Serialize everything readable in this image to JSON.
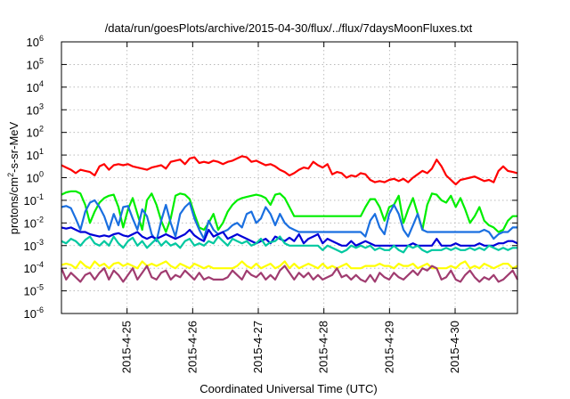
{
  "chart_data": {
    "type": "line",
    "title": "/data/run/goesPlots/archive/2015-04-30/flux/../flux/7daysMoonFluxes.txt",
    "xlabel": "Coordinated Universal Time (UTC)",
    "ylabel": {
      "main": "protons/cm",
      "sup": "2",
      "rest": "-s-sr-MeV"
    },
    "yscale": "log",
    "ylim_exp": [
      -6,
      6
    ],
    "ytick_exps": [
      -6,
      -5,
      -4,
      -3,
      -2,
      -1,
      0,
      1,
      2,
      3,
      4,
      5,
      6
    ],
    "ytick_base": "10",
    "xlim_days": [
      24.0,
      30.95
    ],
    "xtick_labels": [
      "2015-4-25",
      "2015-4-26",
      "2015-4-27",
      "2015-4-28",
      "2015-4-29",
      "2015-4-30"
    ],
    "xtick_days": [
      25,
      26,
      27,
      28,
      29,
      30
    ],
    "grid": true,
    "legend": "none",
    "series": [
      {
        "color": "#ff0000",
        "log10": [
          0.55,
          0.45,
          0.35,
          0.2,
          0.35,
          0.3,
          0.25,
          0.1,
          0.5,
          0.6,
          0.35,
          0.55,
          0.6,
          0.55,
          0.6,
          0.5,
          0.45,
          0.4,
          0.35,
          0.45,
          0.5,
          0.55,
          0.4,
          0.7,
          0.75,
          0.8,
          0.6,
          0.85,
          0.9,
          0.65,
          0.7,
          0.65,
          0.75,
          0.7,
          0.6,
          0.7,
          0.75,
          0.85,
          0.95,
          0.9,
          0.7,
          0.75,
          0.65,
          0.55,
          0.6,
          0.5,
          0.35,
          0.25,
          0.1,
          0.2,
          0.35,
          0.45,
          0.4,
          0.7,
          0.55,
          0.45,
          0.6,
          0.15,
          0.25,
          0.2,
          0.0,
          0.1,
          0.05,
          0.2,
          0.15,
          -0.1,
          -0.2,
          -0.15,
          -0.2,
          -0.1,
          -0.05,
          -0.15,
          -0.05,
          -0.2,
          0.0,
          0.15,
          0.3,
          0.2,
          0.4,
          0.8,
          0.5,
          0.1,
          -0.1,
          -0.3,
          -0.1,
          -0.05,
          0.0,
          0.05,
          -0.05,
          -0.15,
          -0.1,
          -0.2,
          0.3,
          0.5,
          0.3,
          0.25,
          0.2
        ]
      },
      {
        "color": "#00ee00",
        "log10": [
          -0.75,
          -0.65,
          -0.6,
          -0.6,
          -0.7,
          -1.2,
          -2.0,
          -1.5,
          -1.1,
          -0.9,
          -0.8,
          -0.75,
          -1.3,
          -2.2,
          -1.4,
          -0.9,
          -1.6,
          -2.3,
          -1.0,
          -0.7,
          -1.2,
          -1.9,
          -2.4,
          -1.8,
          -0.8,
          -0.7,
          -0.75,
          -0.95,
          -1.6,
          -2.2,
          -2.3,
          -2.0,
          -1.6,
          -2.3,
          -2.0,
          -1.5,
          -1.2,
          -1.0,
          -0.9,
          -0.85,
          -0.8,
          -0.75,
          -0.8,
          -0.9,
          -1.2,
          -0.75,
          -0.7,
          -0.9,
          -1.3,
          -1.7,
          -1.7,
          -1.7,
          -1.7,
          -1.7,
          -1.7,
          -1.7,
          -1.7,
          -1.7,
          -1.7,
          -1.7,
          -1.7,
          -1.7,
          -1.7,
          -1.7,
          -1.3,
          -0.95,
          -0.95,
          -1.3,
          -1.9,
          -1.3,
          -1.2,
          -0.8,
          -2.0,
          -1.4,
          -0.9,
          -1.6,
          -2.3,
          -1.2,
          -0.7,
          -0.75,
          -1.0,
          -1.1,
          -0.8,
          -1.3,
          -0.9,
          -1.4,
          -2.0,
          -1.7,
          -1.3,
          -1.9,
          -2.1,
          -2.2,
          -2.4,
          -2.3,
          -1.9,
          -1.7,
          -1.7
        ]
      },
      {
        "color": "#1a6fe0",
        "log10": [
          -1.3,
          -1.25,
          -1.35,
          -1.8,
          -2.3,
          -1.5,
          -1.1,
          -1.0,
          -1.3,
          -1.7,
          -2.3,
          -1.6,
          -2.1,
          -1.3,
          -1.25,
          -1.8,
          -2.3,
          -1.4,
          -1.7,
          -2.5,
          -2.8,
          -1.9,
          -1.2,
          -2.0,
          -2.6,
          -1.6,
          -1.3,
          -1.1,
          -1.8,
          -2.3,
          -2.7,
          -1.9,
          -2.3,
          -2.5,
          -2.4,
          -2.3,
          -2.1,
          -2.0,
          -2.2,
          -1.6,
          -1.5,
          -2.0,
          -1.8,
          -1.3,
          -1.6,
          -2.1,
          -1.6,
          -2.0,
          -2.2,
          -2.3,
          -2.4,
          -2.4,
          -2.4,
          -2.4,
          -2.4,
          -2.4,
          -2.4,
          -2.4,
          -2.4,
          -2.4,
          -2.4,
          -2.4,
          -2.4,
          -2.4,
          -2.6,
          -1.9,
          -1.6,
          -2.2,
          -2.5,
          -1.6,
          -1.2,
          -1.6,
          -2.3,
          -2.6,
          -2.1,
          -1.6,
          -2.3,
          -2.4,
          -2.4,
          -2.4,
          -2.4,
          -2.4,
          -2.4,
          -2.4,
          -2.4,
          -2.4,
          -2.4,
          -2.4,
          -2.4,
          -2.3,
          -2.4,
          -2.7,
          -2.5,
          -2.4,
          -2.4,
          -2.2,
          -2.2
        ]
      },
      {
        "color": "#0000d8",
        "log10": [
          -2.2,
          -2.25,
          -2.2,
          -2.3,
          -2.4,
          -2.4,
          -2.5,
          -2.55,
          -2.6,
          -2.55,
          -2.6,
          -2.5,
          -2.45,
          -2.55,
          -2.6,
          -2.5,
          -2.4,
          -2.6,
          -2.7,
          -2.6,
          -2.7,
          -2.6,
          -2.5,
          -2.6,
          -2.7,
          -2.6,
          -2.5,
          -2.3,
          -2.55,
          -2.7,
          -2.8,
          -2.3,
          -2.6,
          -2.5,
          -2.4,
          -2.7,
          -2.6,
          -2.5,
          -2.6,
          -2.7,
          -2.8,
          -2.9,
          -2.8,
          -2.7,
          -2.9,
          -2.6,
          -2.7,
          -2.8,
          -2.65,
          -2.8,
          -2.5,
          -2.9,
          -2.7,
          -2.6,
          -2.5,
          -2.9,
          -2.7,
          -2.8,
          -2.9,
          -3.0,
          -3.0,
          -2.8,
          -3.0,
          -2.9,
          -2.8,
          -2.9,
          -3.0,
          -3.0,
          -3.0,
          -3.0,
          -3.0,
          -3.0,
          -3.0,
          -3.0,
          -2.9,
          -3.0,
          -3.0,
          -3.0,
          -3.0,
          -2.7,
          -3.0,
          -3.0,
          -3.0,
          -2.9,
          -3.0,
          -3.0,
          -3.0,
          -3.0,
          -2.9,
          -3.0,
          -3.0,
          -3.0,
          -2.9,
          -2.9,
          -2.8,
          -2.8,
          -2.9
        ]
      },
      {
        "color": "#00c8a0",
        "log10": [
          -2.8,
          -2.9,
          -2.7,
          -2.8,
          -3.0,
          -2.75,
          -2.6,
          -2.9,
          -3.0,
          -2.8,
          -3.0,
          -2.6,
          -2.9,
          -3.1,
          -2.8,
          -2.65,
          -3.0,
          -2.8,
          -3.1,
          -2.9,
          -2.7,
          -3.0,
          -2.8,
          -3.0,
          -2.9,
          -3.1,
          -2.8,
          -2.7,
          -3.0,
          -2.9,
          -3.0,
          -2.8,
          -2.9,
          -2.6,
          -2.8,
          -3.0,
          -2.7,
          -2.8,
          -2.9,
          -2.8,
          -3.0,
          -2.9,
          -2.7,
          -3.0,
          -2.85,
          -2.8,
          -2.6,
          -2.9,
          -3.0,
          -3.0,
          -3.0,
          -3.0,
          -3.0,
          -3.0,
          -3.0,
          -3.2,
          -3.0,
          -3.1,
          -3.2,
          -3.3,
          -3.2,
          -3.0,
          -3.1,
          -3.0,
          -3.1,
          -3.0,
          -3.2,
          -3.1,
          -3.2,
          -3.2,
          -3.0,
          -3.2,
          -3.3,
          -3.0,
          -3.1,
          -3.0,
          -3.2,
          -3.3,
          -3.2,
          -3.2,
          -3.2,
          -3.1,
          -3.2,
          -3.1,
          -3.2,
          -3.2,
          -3.1,
          -3.2,
          -3.1,
          -3.2,
          -3.0,
          -3.1,
          -3.2,
          -3.1,
          -3.2,
          -3.1,
          -3.1
        ]
      },
      {
        "color": "#ffff00",
        "log10": [
          -3.85,
          -3.8,
          -3.85,
          -4.0,
          -3.7,
          -3.9,
          -4.0,
          -3.7,
          -3.9,
          -3.8,
          -4.0,
          -3.8,
          -3.75,
          -3.9,
          -3.8,
          -3.9,
          -4.0,
          -3.7,
          -3.9,
          -3.8,
          -3.9,
          -3.8,
          -3.7,
          -3.9,
          -4.0,
          -3.8,
          -3.9,
          -4.0,
          -3.8,
          -3.9,
          -4.0,
          -3.9,
          -4.0,
          -4.0,
          -4.0,
          -4.0,
          -4.0,
          -3.9,
          -3.7,
          -3.9,
          -4.0,
          -3.8,
          -4.0,
          -3.9,
          -3.8,
          -4.0,
          -3.9,
          -3.7,
          -4.0,
          -3.8,
          -4.0,
          -3.9,
          -3.8,
          -3.9,
          -4.0,
          -3.8,
          -4.0,
          -3.9,
          -4.0,
          -3.9,
          -3.8,
          -4.0,
          -4.0,
          -4.0,
          -3.9,
          -3.9,
          -3.9,
          -3.8,
          -3.9,
          -3.9,
          -4.0,
          -3.8,
          -3.9,
          -3.9,
          -3.8,
          -4.0,
          -3.9,
          -3.8,
          -4.0,
          -4.0,
          -4.0,
          -4.0,
          -3.9,
          -4.0,
          -3.8,
          -3.7,
          -4.0,
          -3.9,
          -4.0,
          -3.8,
          -3.9,
          -4.0,
          -3.9,
          -3.8,
          -3.8,
          -4.0,
          -3.9
        ]
      },
      {
        "color": "#a03c70",
        "log10": [
          -4.0,
          -4.5,
          -4.2,
          -4.4,
          -4.6,
          -4.3,
          -4.2,
          -4.5,
          -4.2,
          -4.0,
          -4.5,
          -4.1,
          -4.3,
          -4.6,
          -4.3,
          -4.0,
          -4.5,
          -4.2,
          -3.9,
          -4.4,
          -4.5,
          -4.2,
          -4.1,
          -4.5,
          -4.3,
          -4.4,
          -4.1,
          -4.3,
          -4.5,
          -4.2,
          -4.5,
          -4.4,
          -4.5,
          -4.5,
          -4.5,
          -4.4,
          -4.1,
          -4.3,
          -4.5,
          -4.1,
          -4.3,
          -4.4,
          -4.2,
          -4.5,
          -4.3,
          -4.5,
          -4.1,
          -3.9,
          -4.2,
          -4.5,
          -4.2,
          -4.4,
          -4.2,
          -4.5,
          -4.3,
          -4.5,
          -4.4,
          -4.3,
          -4.0,
          -4.4,
          -4.3,
          -4.5,
          -4.3,
          -4.5,
          -4.6,
          -4.3,
          -4.6,
          -4.2,
          -4.4,
          -4.5,
          -4.2,
          -4.4,
          -4.5,
          -4.3,
          -4.1,
          -4.3,
          -4.0,
          -4.1,
          -3.9,
          -4.0,
          -4.5,
          -4.4,
          -4.1,
          -4.5,
          -4.6,
          -4.3,
          -4.1,
          -4.4,
          -4.6,
          -4.4,
          -4.5,
          -4.3,
          -4.6,
          -4.5,
          -4.3,
          -4.1,
          -4.5
        ]
      }
    ]
  }
}
